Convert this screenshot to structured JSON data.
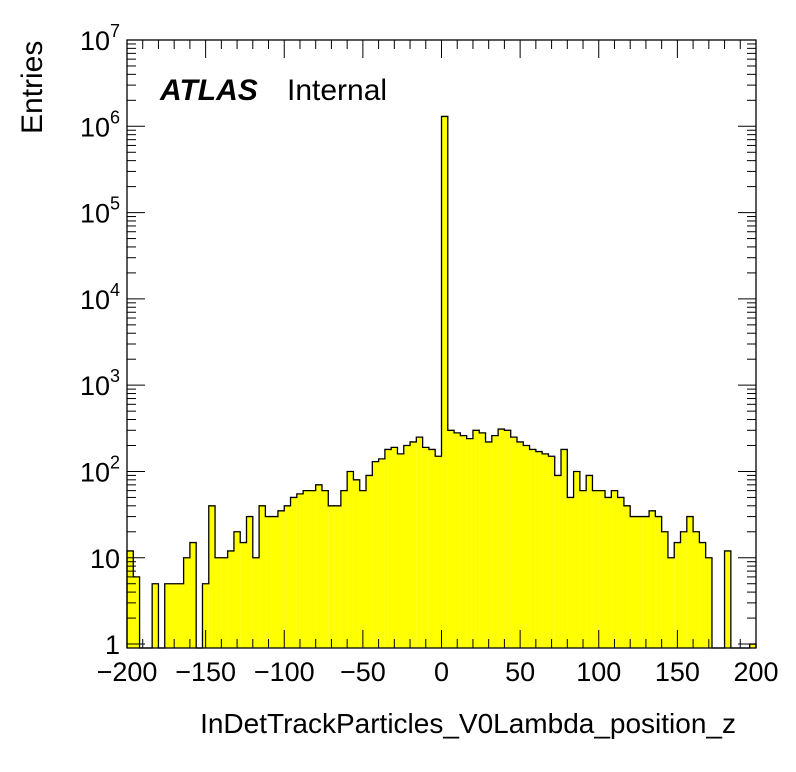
{
  "chart_data": {
    "type": "bar",
    "histogram": true,
    "xlabel": "InDetTrackParticles_V0Lambda_position_z",
    "ylabel": "Entries",
    "log_y": true,
    "xlim": [
      -200,
      200
    ],
    "ylim": [
      0.9,
      10000000
    ],
    "bin_width": 4,
    "x_ticks": [
      "−200",
      "−150",
      "−100",
      "−50",
      "0",
      "50",
      "100",
      "150",
      "200"
    ],
    "x_tick_values": [
      -200,
      -150,
      -100,
      -50,
      0,
      50,
      100,
      150,
      200
    ],
    "y_ticks": [
      {
        "value": 1,
        "base": "1",
        "exp": ""
      },
      {
        "value": 10,
        "base": "10",
        "exp": ""
      },
      {
        "value": 100,
        "base": "10",
        "exp": "2"
      },
      {
        "value": 1000,
        "base": "10",
        "exp": "3"
      },
      {
        "value": 10000,
        "base": "10",
        "exp": "4"
      },
      {
        "value": 100000,
        "base": "10",
        "exp": "5"
      },
      {
        "value": 1000000,
        "base": "10",
        "exp": "6"
      },
      {
        "value": 10000000,
        "base": "10",
        "exp": "7"
      }
    ],
    "fill_color": "#ffff00",
    "line_color": "#000000",
    "bin_low_edges": [
      -200,
      -196,
      -192,
      -188,
      -184,
      -180,
      -176,
      -172,
      -168,
      -164,
      -160,
      -156,
      -152,
      -148,
      -144,
      -140,
      -136,
      -132,
      -128,
      -124,
      -120,
      -116,
      -112,
      -108,
      -104,
      -100,
      -96,
      -92,
      -88,
      -84,
      -80,
      -76,
      -72,
      -68,
      -64,
      -60,
      -56,
      -52,
      -48,
      -44,
      -40,
      -36,
      -32,
      -28,
      -24,
      -20,
      -16,
      -12,
      -8,
      -4,
      0,
      4,
      8,
      12,
      16,
      20,
      24,
      28,
      32,
      36,
      40,
      44,
      48,
      52,
      56,
      60,
      64,
      68,
      72,
      76,
      80,
      84,
      88,
      92,
      96,
      100,
      104,
      108,
      112,
      116,
      120,
      124,
      128,
      132,
      136,
      140,
      144,
      148,
      152,
      156,
      160,
      164,
      168,
      172,
      176,
      180,
      184,
      188,
      192,
      196
    ],
    "values": [
      12,
      6,
      0,
      0,
      5,
      0,
      5,
      5,
      5,
      10,
      15,
      0,
      5,
      40,
      10,
      10,
      12,
      20,
      15,
      30,
      10,
      40,
      30,
      30,
      35,
      40,
      50,
      55,
      60,
      60,
      70,
      60,
      40,
      40,
      60,
      100,
      80,
      60,
      90,
      130,
      140,
      180,
      190,
      160,
      200,
      220,
      250,
      190,
      180,
      150,
      1300000,
      300,
      280,
      260,
      240,
      300,
      280,
      220,
      260,
      310,
      300,
      250,
      220,
      200,
      180,
      170,
      160,
      150,
      90,
      180,
      50,
      100,
      60,
      90,
      60,
      60,
      50,
      60,
      50,
      40,
      30,
      30,
      30,
      35,
      30,
      20,
      10,
      15,
      20,
      30,
      20,
      15,
      10,
      0,
      0,
      12,
      0,
      0,
      0,
      1
    ],
    "annotations": {
      "experiment": "ATLAS",
      "status": "Internal"
    }
  }
}
